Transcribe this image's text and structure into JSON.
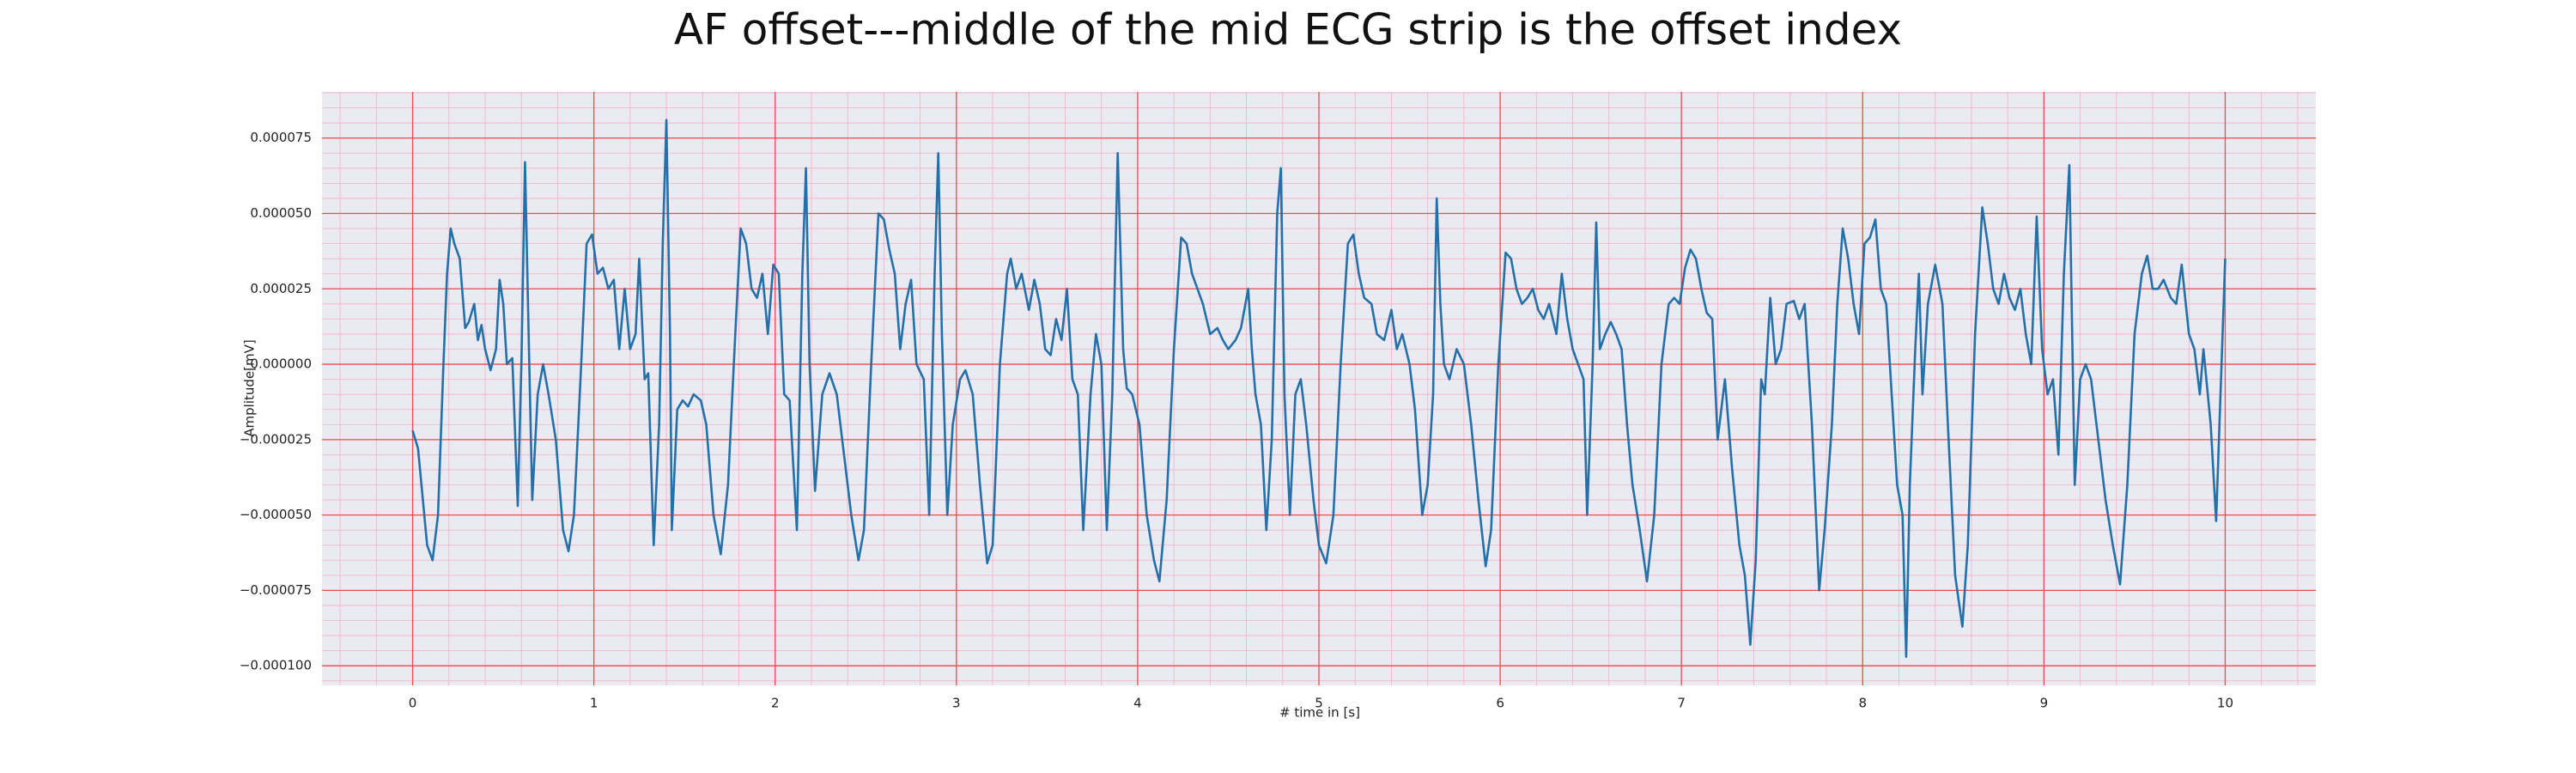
{
  "chart_data": {
    "type": "line",
    "title": "AF offset---middle of the mid ECG strip is the offset index",
    "xlabel": "# time in [s]",
    "ylabel": "Amplitude[mV]",
    "color": "#2470a8",
    "grid": true,
    "minor_grid": true,
    "xlim": [
      -0.5,
      10.5
    ],
    "ylim": [
      -0.0001065,
      9.03e-05
    ],
    "xticks": [
      0,
      1,
      2,
      3,
      4,
      5,
      6,
      7,
      8,
      9,
      10
    ],
    "yticks": [
      {
        "value": -0.0001,
        "label": "−0.000100"
      },
      {
        "value": -7.5e-05,
        "label": "−0.000075"
      },
      {
        "value": -5e-05,
        "label": "−0.000050"
      },
      {
        "value": -2.5e-05,
        "label": "−0.000025"
      },
      {
        "value": 0,
        "label": "0.000000"
      },
      {
        "value": 2.5e-05,
        "label": "0.000025"
      },
      {
        "value": 5e-05,
        "label": "0.000050"
      },
      {
        "value": 7.5e-05,
        "label": "0.000075"
      }
    ],
    "x": [
      0,
      0.03,
      0.08,
      0.11,
      0.14,
      0.17,
      0.19,
      0.21,
      0.23,
      0.26,
      0.29,
      0.31,
      0.34,
      0.36,
      0.38,
      0.4,
      0.43,
      0.46,
      0.48,
      0.5,
      0.52,
      0.55,
      0.58,
      0.6,
      0.62,
      0.64,
      0.66,
      0.69,
      0.72,
      0.75,
      0.79,
      0.83,
      0.86,
      0.89,
      0.93,
      0.96,
      0.99,
      1.02,
      1.05,
      1.08,
      1.11,
      1.14,
      1.17,
      1.2,
      1.23,
      1.25,
      1.28,
      1.3,
      1.33,
      1.36,
      1.38,
      1.4,
      1.42,
      1.43,
      1.46,
      1.49,
      1.52,
      1.55,
      1.59,
      1.62,
      1.66,
      1.7,
      1.74,
      1.78,
      1.81,
      1.84,
      1.87,
      1.9,
      1.93,
      1.96,
      1.99,
      2.02,
      2.05,
      2.08,
      2.12,
      2.15,
      2.17,
      2.19,
      2.22,
      2.26,
      2.3,
      2.34,
      2.38,
      2.42,
      2.46,
      2.49,
      2.53,
      2.57,
      2.6,
      2.63,
      2.66,
      2.69,
      2.72,
      2.75,
      2.78,
      2.82,
      2.85,
      2.88,
      2.9,
      2.92,
      2.95,
      2.98,
      3.02,
      3.05,
      3.09,
      3.13,
      3.17,
      3.2,
      3.24,
      3.28,
      3.3,
      3.33,
      3.36,
      3.4,
      3.43,
      3.46,
      3.49,
      3.52,
      3.55,
      3.58,
      3.61,
      3.64,
      3.67,
      3.7,
      3.74,
      3.77,
      3.8,
      3.83,
      3.86,
      3.89,
      3.92,
      3.94,
      3.97,
      4.01,
      4.05,
      4.09,
      4.12,
      4.16,
      4.2,
      4.24,
      4.27,
      4.3,
      4.33,
      4.36,
      4.4,
      4.44,
      4.47,
      4.5,
      4.54,
      4.57,
      4.61,
      4.63,
      4.65,
      4.68,
      4.71,
      4.74,
      4.77,
      4.79,
      4.81,
      4.84,
      4.87,
      4.9,
      4.93,
      4.97,
      5,
      5.04,
      5.08,
      5.12,
      5.16,
      5.19,
      5.22,
      5.25,
      5.29,
      5.32,
      5.36,
      5.4,
      5.43,
      5.46,
      5.5,
      5.53,
      5.57,
      5.6,
      5.63,
      5.65,
      5.67,
      5.69,
      5.72,
      5.76,
      5.8,
      5.84,
      5.88,
      5.92,
      5.95,
      5.99,
      6.03,
      6.06,
      6.09,
      6.12,
      6.15,
      6.18,
      6.21,
      6.24,
      6.27,
      6.31,
      6.34,
      6.37,
      6.4,
      6.43,
      6.46,
      6.48,
      6.51,
      6.53,
      6.55,
      6.58,
      6.61,
      6.64,
      6.67,
      6.7,
      6.73,
      6.77,
      6.81,
      6.85,
      6.89,
      6.93,
      6.96,
      6.99,
      7.02,
      7.05,
      7.08,
      7.11,
      7.14,
      7.17,
      7.2,
      7.24,
      7.28,
      7.32,
      7.35,
      7.38,
      7.41,
      7.44,
      7.46,
      7.49,
      7.52,
      7.55,
      7.58,
      7.62,
      7.65,
      7.68,
      7.72,
      7.76,
      7.79,
      7.83,
      7.86,
      7.89,
      7.92,
      7.95,
      7.98,
      8.01,
      8.04,
      8.07,
      8.1,
      8.13,
      8.16,
      8.19,
      8.22,
      8.24,
      8.26,
      8.29,
      8.31,
      8.33,
      8.36,
      8.4,
      8.44,
      8.47,
      8.51,
      8.55,
      8.58,
      8.62,
      8.66,
      8.69,
      8.72,
      8.75,
      8.78,
      8.81,
      8.84,
      8.87,
      8.9,
      8.93,
      8.96,
      8.99,
      9.02,
      9.05,
      9.08,
      9.11,
      9.14,
      9.17,
      9.2,
      9.23,
      9.26,
      9.3,
      9.34,
      9.38,
      9.42,
      9.46,
      9.5,
      9.54,
      9.57,
      9.6,
      9.63,
      9.66,
      9.7,
      9.73,
      9.76,
      9.8,
      9.83,
      9.86,
      9.88,
      9.92,
      9.95,
      10
    ],
    "values": [
      -2.2e-05,
      -2.8e-05,
      -6e-05,
      -6.5e-05,
      -5e-05,
      0,
      3e-05,
      4.5e-05,
      4e-05,
      3.5e-05,
      1.2e-05,
      1.4e-05,
      2e-05,
      8e-06,
      1.3e-05,
      5e-06,
      -2e-06,
      5e-06,
      2.8e-05,
      2e-05,
      0,
      2e-06,
      -4.7e-05,
      0,
      6.7e-05,
      1e-05,
      -4.5e-05,
      -1e-05,
      0,
      -1e-05,
      -2.5e-05,
      -5.5e-05,
      -6.2e-05,
      -5e-05,
      0,
      4e-05,
      4.3e-05,
      3e-05,
      3.2e-05,
      2.5e-05,
      2.8e-05,
      5e-06,
      2.5e-05,
      5e-06,
      1e-05,
      3.5e-05,
      -5e-06,
      -3e-06,
      -6e-05,
      -2e-05,
      4e-05,
      8.1e-05,
      1e-05,
      -5.5e-05,
      -1.5e-05,
      -1.2e-05,
      -1.4e-05,
      -1e-05,
      -1.2e-05,
      -2e-05,
      -5e-05,
      -6.3e-05,
      -4e-05,
      1e-05,
      4.5e-05,
      4e-05,
      2.5e-05,
      2.2e-05,
      3e-05,
      1e-05,
      3.3e-05,
      3e-05,
      -1e-05,
      -1.2e-05,
      -5.5e-05,
      3e-05,
      6.5e-05,
      0,
      -4.2e-05,
      -1e-05,
      -3e-06,
      -1e-05,
      -3e-05,
      -5e-05,
      -6.5e-05,
      -5.5e-05,
      0,
      5e-05,
      4.8e-05,
      3.8e-05,
      3e-05,
      5e-06,
      2e-05,
      2.8e-05,
      0,
      -5e-06,
      -5e-05,
      3e-05,
      7e-05,
      1e-05,
      -5e-05,
      -2e-05,
      -5e-06,
      -2e-06,
      -1e-05,
      -4e-05,
      -6.6e-05,
      -6e-05,
      0,
      3e-05,
      3.5e-05,
      2.5e-05,
      3e-05,
      1.8e-05,
      2.8e-05,
      2e-05,
      5e-06,
      3e-06,
      1.5e-05,
      8e-06,
      2.5e-05,
      -5e-06,
      -1e-05,
      -5.5e-05,
      -1e-05,
      1e-05,
      0,
      -5.5e-05,
      -1e-05,
      7e-05,
      5e-06,
      -8e-06,
      -1e-05,
      -2e-05,
      -5e-05,
      -6.5e-05,
      -7.2e-05,
      -4.5e-05,
      5e-06,
      4.2e-05,
      4e-05,
      3e-05,
      2.5e-05,
      2e-05,
      1e-05,
      1.2e-05,
      8e-06,
      5e-06,
      8e-06,
      1.2e-05,
      2.5e-05,
      5e-06,
      -1e-05,
      -2e-05,
      -5.5e-05,
      -2.5e-05,
      5e-05,
      6.5e-05,
      -1e-05,
      -5e-05,
      -1e-05,
      -5e-06,
      -2e-05,
      -4.5e-05,
      -6e-05,
      -6.6e-05,
      -5e-05,
      0,
      4e-05,
      4.3e-05,
      3e-05,
      2.2e-05,
      2e-05,
      1e-05,
      8e-06,
      1.8e-05,
      5e-06,
      1e-05,
      0,
      -1.5e-05,
      -5e-05,
      -4e-05,
      -1e-05,
      5.5e-05,
      2e-05,
      0,
      -5e-06,
      5e-06,
      0,
      -2e-05,
      -4.5e-05,
      -6.7e-05,
      -5.5e-05,
      0,
      3.7e-05,
      3.5e-05,
      2.5e-05,
      2e-05,
      2.2e-05,
      2.5e-05,
      1.8e-05,
      1.5e-05,
      2e-05,
      1e-05,
      3e-05,
      1.5e-05,
      5e-06,
      0,
      -5e-06,
      -5e-05,
      0,
      4.7e-05,
      5e-06,
      1e-05,
      1.4e-05,
      1e-05,
      5e-06,
      -2e-05,
      -4e-05,
      -5.5e-05,
      -7.2e-05,
      -5e-05,
      0,
      2e-05,
      2.2e-05,
      2e-05,
      3.2e-05,
      3.8e-05,
      3.5e-05,
      2.5e-05,
      1.7e-05,
      1.5e-05,
      -2.5e-05,
      -5e-06,
      -3.5e-05,
      -6e-05,
      -7e-05,
      -9.3e-05,
      -6.5e-05,
      -5e-06,
      -1e-05,
      2.2e-05,
      0,
      5e-06,
      2e-05,
      2.1e-05,
      1.5e-05,
      2e-05,
      -2e-05,
      -7.5e-05,
      -5.5e-05,
      -2e-05,
      2e-05,
      4.5e-05,
      3.5e-05,
      2e-05,
      1e-05,
      4e-05,
      4.2e-05,
      4.8e-05,
      2.5e-05,
      2e-05,
      -1e-05,
      -4e-05,
      -5e-05,
      -9.7e-05,
      -4e-05,
      5e-06,
      3e-05,
      -1e-05,
      2e-05,
      3.3e-05,
      2e-05,
      -2e-05,
      -7e-05,
      -8.7e-05,
      -6e-05,
      1e-05,
      5.2e-05,
      4e-05,
      2.5e-05,
      2e-05,
      3e-05,
      2.2e-05,
      1.8e-05,
      2.5e-05,
      1e-05,
      0,
      4.9e-05,
      5e-06,
      -1e-05,
      -5e-06,
      -3e-05,
      3e-05,
      6.6e-05,
      -4e-05,
      -5e-06,
      0,
      -5e-06,
      -2.5e-05,
      -4.5e-05,
      -6e-05,
      -7.3e-05,
      -4e-05,
      1e-05,
      3e-05,
      3.6e-05,
      2.5e-05,
      2.5e-05,
      2.8e-05,
      2.2e-05,
      2e-05,
      3.3e-05,
      1e-05,
      5e-06,
      -1e-05,
      5e-06,
      -2e-05,
      -5.2e-05,
      3.5e-05
    ]
  }
}
